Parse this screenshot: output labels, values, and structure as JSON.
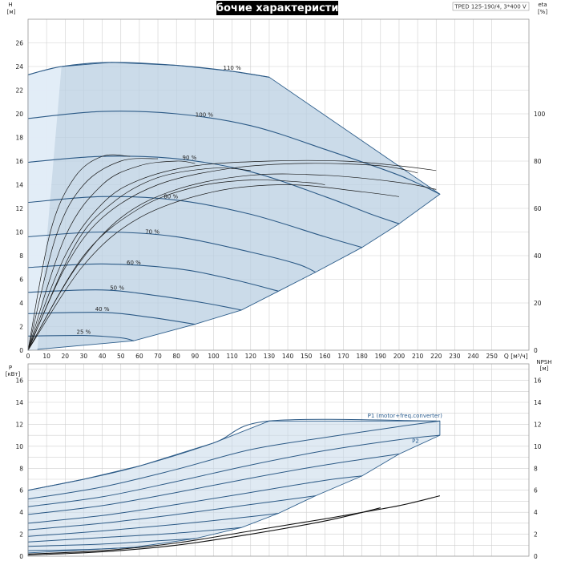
{
  "header": {
    "title": "Рабочие характеристики",
    "model": "TPED 125-190/4, 3*400 V"
  },
  "chart_data": [
    {
      "type": "line",
      "name": "head",
      "x_unit_label": "Q [м³/ч]",
      "y_left_label_top": "H",
      "y_left_label_unit": "[м]",
      "y_right_label_top": "eta",
      "y_right_label_unit": "[%]",
      "xlim": [
        0,
        270
      ],
      "ylim_left": [
        0,
        28
      ],
      "ylim_right": [
        0,
        140
      ],
      "x_ticks": [
        0,
        10,
        20,
        30,
        40,
        50,
        60,
        70,
        80,
        90,
        100,
        110,
        120,
        130,
        140,
        150,
        160,
        170,
        180,
        190,
        200,
        210,
        220,
        230,
        240,
        250
      ],
      "y_left_ticks": [
        0,
        2,
        4,
        6,
        8,
        10,
        12,
        14,
        16,
        18,
        20,
        22,
        24,
        26
      ],
      "y_right_ticks": [
        0,
        20,
        40,
        60,
        80,
        100
      ],
      "speed_curves": [
        {
          "label": "110 %",
          "label_x": 110,
          "points": [
            [
              0,
              23.3
            ],
            [
              18,
              24.0
            ],
            [
              45,
              24.35
            ],
            [
              80,
              24.1
            ],
            [
              110,
              23.6
            ],
            [
              130,
              23.1
            ]
          ]
        },
        {
          "label": "100 %",
          "label_x": 95,
          "points": [
            [
              0,
              19.6
            ],
            [
              40,
              20.2
            ],
            [
              80,
              20.0
            ],
            [
              120,
              19.0
            ],
            [
              160,
              17.0
            ],
            [
              200,
              14.8
            ],
            [
              222,
              13.2
            ]
          ]
        },
        {
          "label": "90 %",
          "label_x": 87,
          "points": [
            [
              0,
              15.9
            ],
            [
              40,
              16.4
            ],
            [
              80,
              16.2
            ],
            [
              120,
              15.1
            ],
            [
              160,
              13.0
            ],
            [
              185,
              11.5
            ],
            [
              200,
              10.7
            ]
          ]
        },
        {
          "label": "80 %",
          "label_x": 77,
          "points": [
            [
              0,
              12.5
            ],
            [
              40,
              13.0
            ],
            [
              80,
              12.7
            ],
            [
              120,
              11.5
            ],
            [
              160,
              9.6
            ],
            [
              180,
              8.7
            ]
          ]
        },
        {
          "label": "70 %",
          "label_x": 67,
          "points": [
            [
              0,
              9.6
            ],
            [
              40,
              10.0
            ],
            [
              80,
              9.6
            ],
            [
              120,
              8.3
            ],
            [
              145,
              7.3
            ],
            [
              155,
              6.6
            ]
          ]
        },
        {
          "label": "60 %",
          "label_x": 57,
          "points": [
            [
              0,
              7.0
            ],
            [
              40,
              7.3
            ],
            [
              80,
              6.9
            ],
            [
              110,
              6.0
            ],
            [
              135,
              5.0
            ]
          ]
        },
        {
          "label": "50 %",
          "label_x": 48,
          "points": [
            [
              0,
              4.9
            ],
            [
              40,
              5.1
            ],
            [
              70,
              4.6
            ],
            [
              95,
              4.0
            ],
            [
              115,
              3.4
            ]
          ]
        },
        {
          "label": "40 %",
          "label_x": 40,
          "points": [
            [
              0,
              3.1
            ],
            [
              40,
              3.2
            ],
            [
              65,
              2.8
            ],
            [
              90,
              2.2
            ]
          ]
        },
        {
          "label": "25 %",
          "label_x": 30,
          "points": [
            [
              0,
              1.2
            ],
            [
              30,
              1.25
            ],
            [
              50,
              1.05
            ],
            [
              57,
              0.8
            ]
          ]
        }
      ],
      "efficiency_curves": [
        {
          "points": [
            [
              0,
              0
            ],
            [
              20,
              40
            ],
            [
              40,
              62
            ],
            [
              60,
              72
            ],
            [
              90,
              78
            ],
            [
              130,
              80
            ],
            [
              170,
              80
            ],
            [
              200,
              78
            ],
            [
              220,
              76
            ]
          ]
        },
        {
          "points": [
            [
              0,
              0
            ],
            [
              20,
              35
            ],
            [
              40,
              56
            ],
            [
              70,
              70
            ],
            [
              110,
              77
            ],
            [
              150,
              79
            ],
            [
              190,
              78
            ],
            [
              210,
              75
            ]
          ]
        },
        {
          "points": [
            [
              0,
              0
            ],
            [
              25,
              34
            ],
            [
              50,
              56
            ],
            [
              80,
              68
            ],
            [
              120,
              74
            ],
            [
              160,
              74
            ],
            [
              200,
              71
            ],
            [
              220,
              68
            ]
          ]
        },
        {
          "points": [
            [
              0,
              0
            ],
            [
              30,
              36
            ],
            [
              60,
              56
            ],
            [
              100,
              67
            ],
            [
              140,
              70
            ],
            [
              180,
              67
            ],
            [
              200,
              65
            ]
          ]
        },
        {
          "points": [
            [
              0,
              0
            ],
            [
              30,
              40
            ],
            [
              60,
              60
            ],
            [
              90,
              69
            ],
            [
              120,
              72
            ],
            [
              150,
              71
            ],
            [
              160,
              70
            ]
          ]
        },
        {
          "points": [
            [
              0,
              0
            ],
            [
              25,
              44
            ],
            [
              45,
              62
            ],
            [
              70,
              73
            ],
            [
              100,
              77
            ],
            [
              120,
              76
            ]
          ]
        },
        {
          "points": [
            [
              0,
              0
            ],
            [
              20,
              48
            ],
            [
              40,
              70
            ],
            [
              60,
              78
            ],
            [
              80,
              80
            ],
            [
              90,
              79
            ]
          ]
        },
        {
          "points": [
            [
              0,
              0
            ],
            [
              15,
              48
            ],
            [
              30,
              70
            ],
            [
              50,
              80
            ],
            [
              70,
              81
            ]
          ]
        },
        {
          "points": [
            [
              0,
              0
            ],
            [
              12,
              50
            ],
            [
              25,
              73
            ],
            [
              40,
              82
            ],
            [
              55,
              82
            ]
          ]
        }
      ]
    },
    {
      "type": "line",
      "name": "power",
      "y_left_label_top": "P",
      "y_left_label_unit": "[кВт]",
      "y_right_label_top": "NPSH",
      "y_right_label_unit": "[м]",
      "xlim": [
        0,
        270
      ],
      "ylim_left": [
        0,
        17.5
      ],
      "ylim_right": [
        0,
        17.5
      ],
      "y_left_ticks": [
        0,
        2,
        4,
        6,
        8,
        10,
        12,
        14,
        16
      ],
      "y_right_ticks": [
        0,
        2,
        4,
        6,
        8,
        10,
        12,
        14,
        16
      ],
      "series_labels": [
        "P1 (motor+freq.converter)",
        "P2"
      ],
      "power_curves": [
        {
          "points": [
            [
              0,
              6.0
            ],
            [
              30,
              7.0
            ],
            [
              60,
              8.2
            ],
            [
              100,
              10.3
            ],
            [
              130,
              12.3
            ],
            [
              220,
              12.3
            ]
          ]
        },
        {
          "points": [
            [
              0,
              5.2
            ],
            [
              40,
              6.3
            ],
            [
              80,
              7.9
            ],
            [
              120,
              9.7
            ],
            [
              160,
              10.8
            ],
            [
              200,
              11.8
            ],
            [
              222,
              12.3
            ]
          ]
        },
        {
          "points": [
            [
              0,
              4.5
            ],
            [
              40,
              5.4
            ],
            [
              80,
              6.8
            ],
            [
              120,
              8.3
            ],
            [
              160,
              9.6
            ],
            [
              200,
              10.6
            ],
            [
              222,
              11.0
            ]
          ]
        },
        {
          "points": [
            [
              0,
              3.8
            ],
            [
              40,
              4.6
            ],
            [
              80,
              5.8
            ],
            [
              120,
              7.1
            ],
            [
              160,
              8.3
            ],
            [
              200,
              9.3
            ]
          ]
        },
        {
          "points": [
            [
              0,
              3.0
            ],
            [
              40,
              3.7
            ],
            [
              80,
              4.7
            ],
            [
              120,
              5.8
            ],
            [
              160,
              6.9
            ],
            [
              180,
              7.3
            ]
          ]
        },
        {
          "points": [
            [
              0,
              2.4
            ],
            [
              40,
              3.0
            ],
            [
              80,
              3.8
            ],
            [
              120,
              4.7
            ],
            [
              155,
              5.5
            ]
          ]
        },
        {
          "points": [
            [
              0,
              1.8
            ],
            [
              40,
              2.3
            ],
            [
              80,
              2.9
            ],
            [
              120,
              3.6
            ],
            [
              135,
              3.9
            ]
          ]
        },
        {
          "points": [
            [
              0,
              1.3
            ],
            [
              40,
              1.7
            ],
            [
              80,
              2.1
            ],
            [
              115,
              2.6
            ]
          ]
        },
        {
          "points": [
            [
              0,
              0.9
            ],
            [
              40,
              1.1
            ],
            [
              70,
              1.4
            ],
            [
              90,
              1.6
            ]
          ]
        },
        {
          "points": [
            [
              0,
              0.5
            ],
            [
              30,
              0.6
            ],
            [
              57,
              0.8
            ]
          ]
        }
      ],
      "npsh_curves": [
        {
          "points": [
            [
              0,
              0.2
            ],
            [
              40,
              0.5
            ],
            [
              80,
              1.2
            ],
            [
              120,
              2.3
            ],
            [
              160,
              3.4
            ],
            [
              200,
              4.6
            ],
            [
              222,
              5.5
            ]
          ]
        },
        {
          "points": [
            [
              0,
              0.1
            ],
            [
              40,
              0.4
            ],
            [
              80,
              1.0
            ],
            [
              120,
              2.0
            ],
            [
              160,
              3.2
            ],
            [
              190,
              4.4
            ]
          ]
        }
      ]
    }
  ]
}
